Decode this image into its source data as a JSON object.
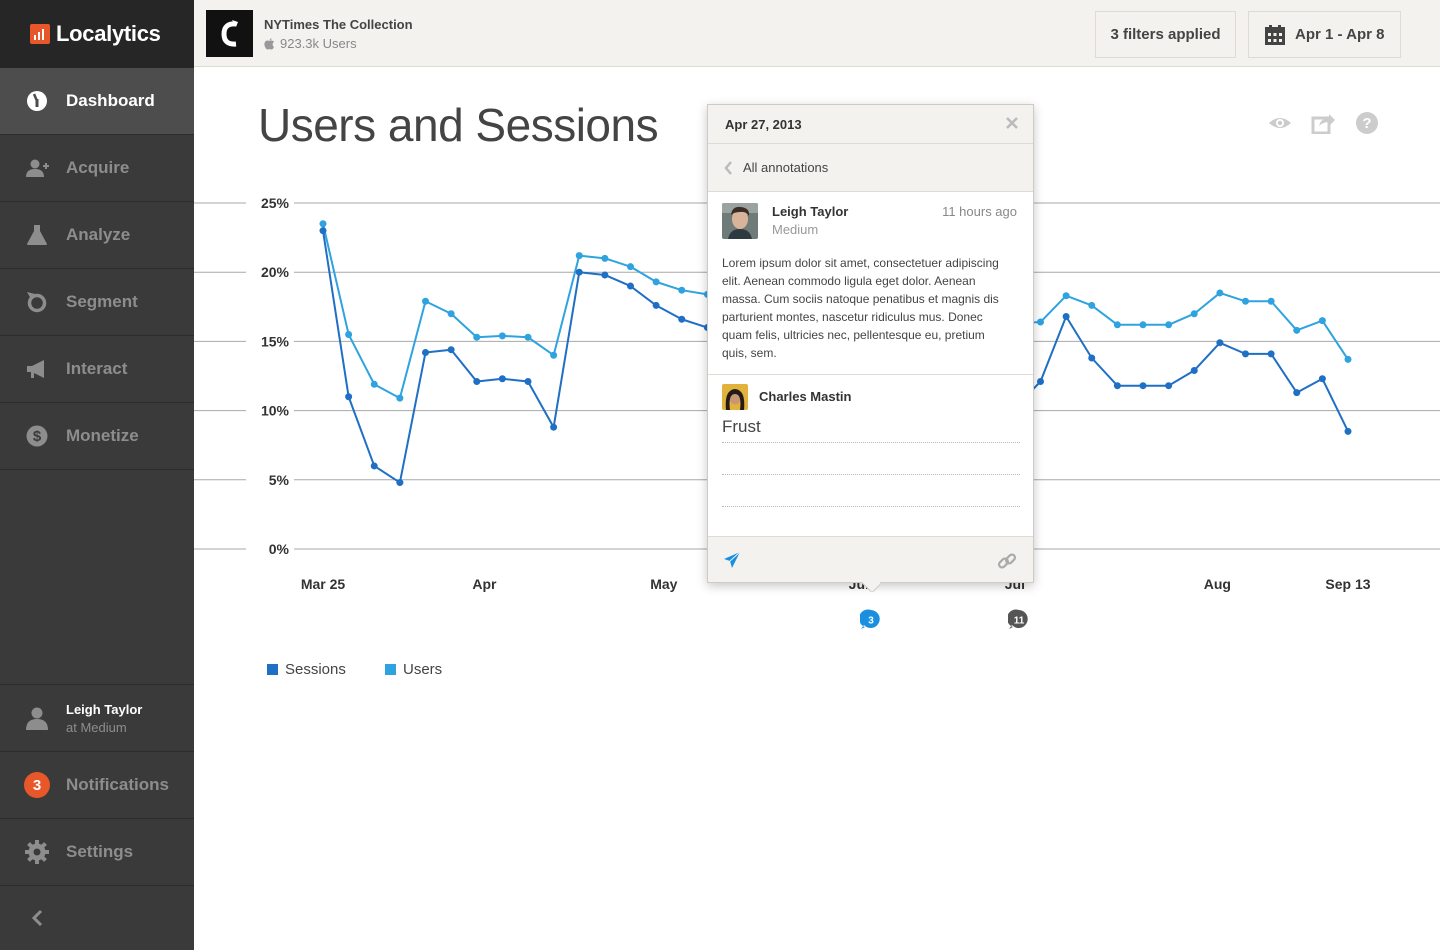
{
  "brand": {
    "name": "Localytics",
    "accent": "#e8572a"
  },
  "sidebar": {
    "items": [
      {
        "label": "Dashboard",
        "icon": "dashboard-icon",
        "active": true
      },
      {
        "label": "Acquire",
        "icon": "acquire-users-icon"
      },
      {
        "label": "Analyze",
        "icon": "flask-icon"
      },
      {
        "label": "Segment",
        "icon": "segment-refresh-icon"
      },
      {
        "label": "Interact",
        "icon": "megaphone-icon"
      },
      {
        "label": "Monetize",
        "icon": "dollar-icon"
      }
    ],
    "user": {
      "name": "Leigh Taylor",
      "org": "at Medium"
    },
    "notifications": {
      "label": "Notifications",
      "count": "3"
    },
    "settings_label": "Settings"
  },
  "header": {
    "app_name": "NYTimes The Collection",
    "app_users": "923.3k Users",
    "filters_label": "3 filters applied",
    "date_range": "Apr 1 - Apr 8"
  },
  "page": {
    "title": "Users and Sessions"
  },
  "chart_data": {
    "type": "line",
    "x": [
      "Mar 25",
      "",
      "",
      "",
      "",
      "",
      "",
      "",
      "",
      "",
      "Apr",
      "",
      "",
      "",
      "",
      "",
      "",
      "May",
      "",
      "",
      "",
      "",
      "",
      "",
      "",
      "",
      "",
      "",
      "",
      "",
      "",
      "",
      "",
      "",
      "",
      "",
      "",
      "",
      "",
      "",
      "",
      "",
      "",
      "",
      "Aug",
      "",
      "",
      "",
      "",
      "Sep 13"
    ],
    "x_tick_labels": [
      "Mar 25",
      "Apr",
      "May",
      "Jun",
      "Jul",
      "Aug",
      "Sep 13"
    ],
    "y_tick_labels": [
      "0%",
      "5%",
      "10%",
      "15%",
      "20%",
      "25%"
    ],
    "ylim": [
      0,
      25
    ],
    "grid": true,
    "legend_position": "bottom-left",
    "series": [
      {
        "name": "Sessions",
        "color": "#1f6fc5",
        "points": [
          [
            0,
            23.0
          ],
          [
            1,
            11.0
          ],
          [
            2,
            6.0
          ],
          [
            3,
            4.8
          ],
          [
            4,
            14.2
          ],
          [
            5,
            14.4
          ],
          [
            6,
            12.1
          ],
          [
            7,
            12.3
          ],
          [
            8,
            12.1
          ],
          [
            9,
            8.8
          ],
          [
            10,
            20.0
          ],
          [
            11,
            19.8
          ],
          [
            12,
            19.0
          ],
          [
            13,
            17.6
          ],
          [
            14,
            16.6
          ],
          [
            15,
            16.0
          ],
          [
            27,
            10.2
          ],
          [
            28,
            12.1
          ],
          [
            29,
            16.8
          ],
          [
            30,
            13.8
          ],
          [
            31,
            11.8
          ],
          [
            32,
            11.8
          ],
          [
            33,
            11.8
          ],
          [
            34,
            12.9
          ],
          [
            35,
            14.9
          ],
          [
            36,
            14.1
          ],
          [
            37,
            14.1
          ],
          [
            38,
            11.3
          ],
          [
            39,
            12.3
          ],
          [
            40,
            8.5
          ]
        ]
      },
      {
        "name": "Users",
        "color": "#2ea3e0",
        "points": [
          [
            0,
            23.5
          ],
          [
            1,
            15.5
          ],
          [
            2,
            11.9
          ],
          [
            3,
            10.9
          ],
          [
            4,
            17.9
          ],
          [
            5,
            17.0
          ],
          [
            6,
            15.3
          ],
          [
            7,
            15.4
          ],
          [
            8,
            15.3
          ],
          [
            9,
            14.0
          ],
          [
            10,
            21.2
          ],
          [
            11,
            21.0
          ],
          [
            12,
            20.4
          ],
          [
            13,
            19.3
          ],
          [
            14,
            18.7
          ],
          [
            15,
            18.4
          ],
          [
            26,
            16.1
          ],
          [
            27,
            16.3
          ],
          [
            28,
            16.4
          ],
          [
            29,
            18.3
          ],
          [
            30,
            17.6
          ],
          [
            31,
            16.2
          ],
          [
            32,
            16.2
          ],
          [
            33,
            16.2
          ],
          [
            34,
            17.0
          ],
          [
            35,
            18.5
          ],
          [
            36,
            17.9
          ],
          [
            37,
            17.9
          ],
          [
            38,
            15.8
          ],
          [
            39,
            16.5
          ],
          [
            40,
            13.7
          ]
        ]
      }
    ]
  },
  "annotations": [
    {
      "count": "3",
      "color": "#1a8fe0"
    },
    {
      "count": "11",
      "color": "#555555"
    }
  ],
  "popover": {
    "date": "Apr 27, 2013",
    "back_label": "All annotations",
    "comment": {
      "author": "Leigh Taylor",
      "org": "Medium",
      "time": "11 hours ago",
      "body": "Lorem ipsum dolor sit amet, consectetuer adipiscing elit. Aenean commodo ligula eget dolor. Aenean massa. Cum sociis natoque penatibus et magnis dis parturient montes, nascetur ridiculus mus. Donec quam felis, ultricies nec, pellentesque eu, pretium quis, sem."
    },
    "reply": {
      "author": "Charles Mastin",
      "value": "Frust"
    }
  }
}
